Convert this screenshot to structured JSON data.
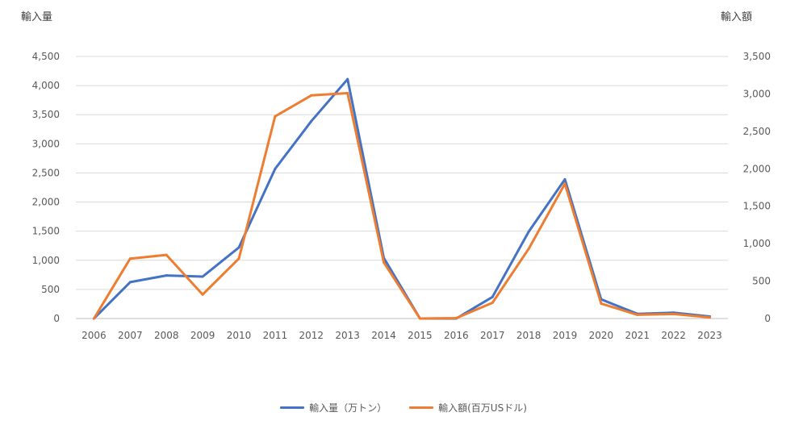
{
  "chart_data": {
    "type": "line",
    "title": "",
    "xlabel": "",
    "ylabel_left": "輸入量",
    "ylabel_right": "輸入額",
    "categories": [
      "2006",
      "2007",
      "2008",
      "2009",
      "2010",
      "2011",
      "2012",
      "2013",
      "2014",
      "2015",
      "2016",
      "2017",
      "2018",
      "2019",
      "2020",
      "2021",
      "2022",
      "2023"
    ],
    "ylim_left": [
      0,
      4500
    ],
    "yticks_left": [
      "0",
      "500",
      "1,000",
      "1,500",
      "2,000",
      "2,500",
      "3,000",
      "3,500",
      "4,000",
      "4,500"
    ],
    "ylim_right": [
      0,
      3500
    ],
    "yticks_right": [
      "0",
      "500",
      "1,000",
      "1,500",
      "2,000",
      "2,500",
      "3,000",
      "3,500"
    ],
    "grid": true,
    "legend_position": "bottom",
    "series": [
      {
        "name": "輸入量（万トン）",
        "axis": "left",
        "color": "#4472C4",
        "values": [
          0,
          625,
          740,
          720,
          1220,
          2570,
          3390,
          4110,
          1040,
          0,
          0,
          370,
          1490,
          2390,
          330,
          80,
          100,
          35
        ]
      },
      {
        "name": "輸入額(百万USドル)",
        "axis": "right",
        "color": "#ED7D31",
        "values": [
          0,
          800,
          850,
          320,
          800,
          2700,
          2980,
          3010,
          750,
          0,
          5,
          210,
          930,
          1800,
          200,
          50,
          60,
          15
        ]
      }
    ]
  }
}
